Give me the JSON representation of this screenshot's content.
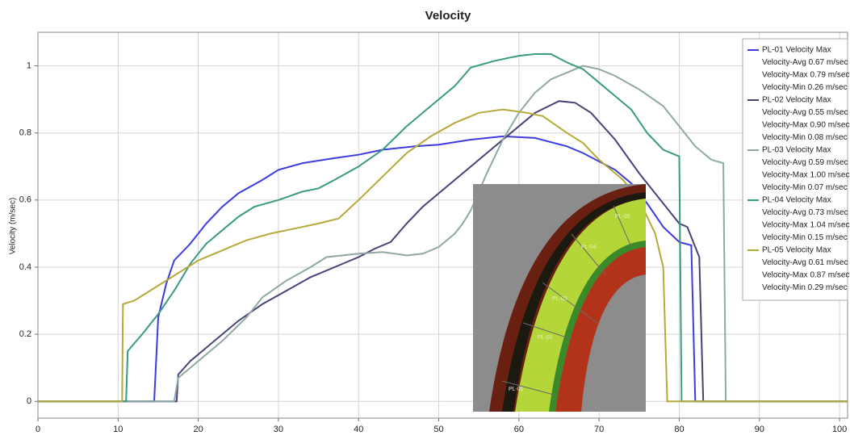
{
  "chart_data": {
    "type": "line",
    "title": "Velocity",
    "y_label": "Velocity (m/sec)",
    "xlim": [
      0,
      101
    ],
    "ylim": [
      -0.05,
      1.1
    ],
    "xticks": [
      0,
      10,
      20,
      30,
      40,
      50,
      60,
      70,
      80,
      90,
      100
    ],
    "yticks": [
      0,
      0.2,
      0.4,
      0.6,
      0.8,
      1
    ],
    "grid": true,
    "legend": "upper right",
    "series": [
      {
        "name": "PL-01 Velocity Max",
        "color": "#3b3be0",
        "notes": [
          "Velocity-Avg 0.67 m/sec",
          "Velocity-Max 0.79 m/sec",
          "Velocity-Min 0.26 m/sec"
        ],
        "x": [
          0,
          14.5,
          15,
          16,
          17,
          19,
          21,
          23,
          25,
          28,
          30,
          33,
          37,
          40,
          43,
          47,
          50,
          54,
          58,
          62,
          66,
          68,
          72,
          74,
          76,
          78,
          80,
          81.5,
          82,
          101
        ],
        "values": [
          0,
          0,
          0.25,
          0.35,
          0.42,
          0.47,
          0.53,
          0.58,
          0.62,
          0.66,
          0.69,
          0.71,
          0.725,
          0.735,
          0.75,
          0.76,
          0.765,
          0.78,
          0.79,
          0.785,
          0.76,
          0.74,
          0.69,
          0.65,
          0.59,
          0.52,
          0.475,
          0.465,
          0,
          0
        ]
      },
      {
        "name": "PL-02 Velocity Max",
        "color": "#4a4178",
        "notes": [
          "Velocity-Avg 0.55 m/sec",
          "Velocity-Max 0.90 m/sec",
          "Velocity-Min 0.08 m/sec"
        ],
        "x": [
          0,
          17.3,
          17.5,
          19,
          22,
          25,
          28,
          31,
          34,
          37,
          40,
          42,
          44,
          46,
          48,
          50,
          53,
          56,
          59,
          62,
          65,
          67,
          69,
          72,
          75,
          78,
          80,
          81,
          82.5,
          83,
          101
        ],
        "values": [
          0,
          0,
          0.08,
          0.12,
          0.18,
          0.24,
          0.29,
          0.33,
          0.37,
          0.4,
          0.43,
          0.455,
          0.475,
          0.53,
          0.58,
          0.62,
          0.68,
          0.74,
          0.8,
          0.86,
          0.895,
          0.89,
          0.86,
          0.78,
          0.68,
          0.59,
          0.53,
          0.52,
          0.43,
          0,
          0
        ]
      },
      {
        "name": "PL-03 Velocity Max",
        "color": "#90a8a4",
        "notes": [
          "Velocity-Avg 0.59 m/sec",
          "Velocity-Max 1.00 m/sec",
          "Velocity-Min 0.07 m/sec"
        ],
        "x": [
          0,
          17,
          17.5,
          20,
          23,
          26,
          28,
          31,
          34,
          36,
          40,
          43,
          46,
          48,
          50,
          52,
          53,
          54,
          56,
          58,
          60,
          62,
          64,
          66,
          68,
          70,
          72,
          75,
          78,
          80,
          82,
          84,
          85.5,
          85.8,
          101
        ],
        "values": [
          0,
          0,
          0.07,
          0.12,
          0.18,
          0.25,
          0.31,
          0.36,
          0.4,
          0.43,
          0.44,
          0.445,
          0.435,
          0.44,
          0.46,
          0.5,
          0.53,
          0.57,
          0.68,
          0.78,
          0.86,
          0.92,
          0.96,
          0.98,
          1.0,
          0.99,
          0.97,
          0.93,
          0.88,
          0.82,
          0.76,
          0.72,
          0.71,
          0,
          0
        ]
      },
      {
        "name": "PL-04 Velocity Max",
        "color": "#3a9a82",
        "notes": [
          "Velocity-Avg 0.73 m/sec",
          "Velocity-Max 1.04 m/sec",
          "Velocity-Min 0.15 m/sec"
        ],
        "x": [
          0,
          11,
          11.2,
          13,
          15,
          17,
          19,
          21,
          23,
          25,
          27,
          30,
          33,
          35,
          37,
          40,
          43,
          46,
          49,
          52,
          54,
          57,
          60,
          62,
          64,
          66,
          68,
          70,
          72,
          74,
          76,
          78,
          80,
          80.3,
          101
        ],
        "values": [
          0,
          0,
          0.15,
          0.2,
          0.26,
          0.33,
          0.41,
          0.47,
          0.51,
          0.55,
          0.58,
          0.6,
          0.625,
          0.635,
          0.66,
          0.7,
          0.75,
          0.82,
          0.88,
          0.94,
          0.995,
          1.015,
          1.03,
          1.035,
          1.035,
          1.01,
          0.99,
          0.95,
          0.91,
          0.87,
          0.8,
          0.75,
          0.73,
          0,
          0
        ]
      },
      {
        "name": "PL-05 Velocity Max",
        "color": "#b5a93a",
        "notes": [
          "Velocity-Avg 0.61 m/sec",
          "Velocity-Max 0.87 m/sec",
          "Velocity-Min 0.29 m/sec"
        ],
        "x": [
          0,
          10.5,
          10.6,
          12,
          14,
          16,
          18,
          20,
          23,
          26,
          29,
          32,
          35,
          37.5,
          40,
          43,
          46,
          49,
          52,
          55,
          58,
          61,
          63,
          66,
          68,
          70,
          73,
          75,
          77,
          78,
          78.5,
          101
        ],
        "values": [
          0,
          0,
          0.29,
          0.3,
          0.33,
          0.36,
          0.39,
          0.42,
          0.45,
          0.48,
          0.5,
          0.515,
          0.53,
          0.545,
          0.6,
          0.67,
          0.74,
          0.79,
          0.83,
          0.86,
          0.87,
          0.86,
          0.85,
          0.8,
          0.77,
          0.72,
          0.66,
          0.6,
          0.5,
          0.4,
          0,
          0
        ]
      }
    ],
    "inset_labels": [
      "PL-01",
      "PL-02",
      "PL-03",
      "PL-04",
      "PL-05"
    ]
  }
}
